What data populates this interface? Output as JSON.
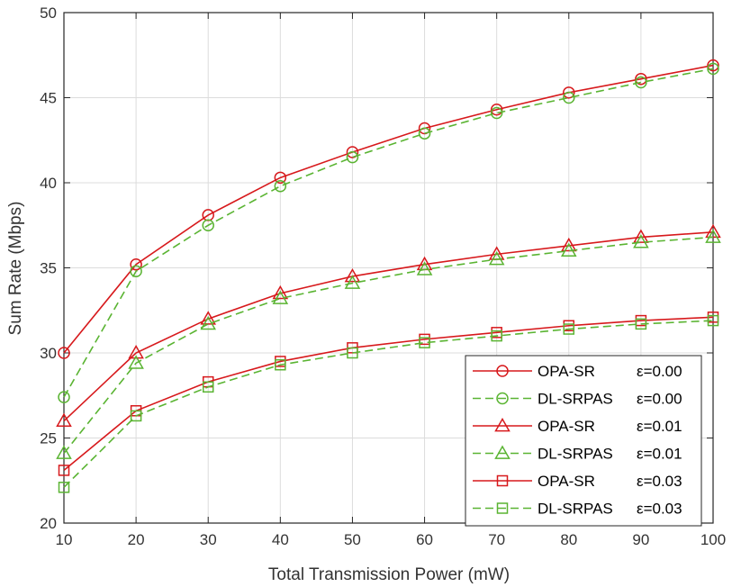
{
  "chart_data": {
    "type": "line",
    "title": "",
    "xlabel": "Total Transmission Power (mW)",
    "ylabel": "Sum Rate (Mbps)",
    "xlim": [
      10,
      100
    ],
    "ylim": [
      20,
      50
    ],
    "xticks": [
      10,
      20,
      30,
      40,
      50,
      60,
      70,
      80,
      90,
      100
    ],
    "yticks": [
      20,
      25,
      30,
      35,
      40,
      45,
      50
    ],
    "grid": true,
    "legend_position": "bottom-right",
    "x": [
      10,
      20,
      30,
      40,
      50,
      60,
      70,
      80,
      90,
      100
    ],
    "series": [
      {
        "name": "OPA-SR",
        "eps": "ε=0.00",
        "color": "#d7191c",
        "dash": "solid",
        "marker": "circle",
        "values": [
          30.0,
          35.2,
          38.1,
          40.3,
          41.8,
          43.2,
          44.3,
          45.3,
          46.1,
          46.9
        ]
      },
      {
        "name": "DL-SRPAS",
        "eps": "ε=0.00",
        "color": "#5ab432",
        "dash": "dashed",
        "marker": "circle",
        "values": [
          27.4,
          34.8,
          37.5,
          39.8,
          41.5,
          42.9,
          44.1,
          45.0,
          45.9,
          46.7
        ]
      },
      {
        "name": "OPA-SR",
        "eps": "ε=0.01",
        "color": "#d7191c",
        "dash": "solid",
        "marker": "triangle",
        "values": [
          26.0,
          30.0,
          32.0,
          33.5,
          34.5,
          35.2,
          35.8,
          36.3,
          36.8,
          37.1
        ]
      },
      {
        "name": "DL-SRPAS",
        "eps": "ε=0.01",
        "color": "#5ab432",
        "dash": "dashed",
        "marker": "triangle",
        "values": [
          24.1,
          29.4,
          31.7,
          33.2,
          34.1,
          34.9,
          35.5,
          36.0,
          36.5,
          36.8
        ]
      },
      {
        "name": "OPA-SR",
        "eps": "ε=0.03",
        "color": "#d7191c",
        "dash": "solid",
        "marker": "square",
        "values": [
          23.1,
          26.6,
          28.3,
          29.5,
          30.3,
          30.8,
          31.2,
          31.6,
          31.9,
          32.1
        ]
      },
      {
        "name": "DL-SRPAS",
        "eps": "ε=0.03",
        "color": "#5ab432",
        "dash": "dashed",
        "marker": "square",
        "values": [
          22.1,
          26.3,
          28.0,
          29.3,
          30.0,
          30.6,
          31.0,
          31.4,
          31.7,
          31.9
        ]
      }
    ]
  }
}
